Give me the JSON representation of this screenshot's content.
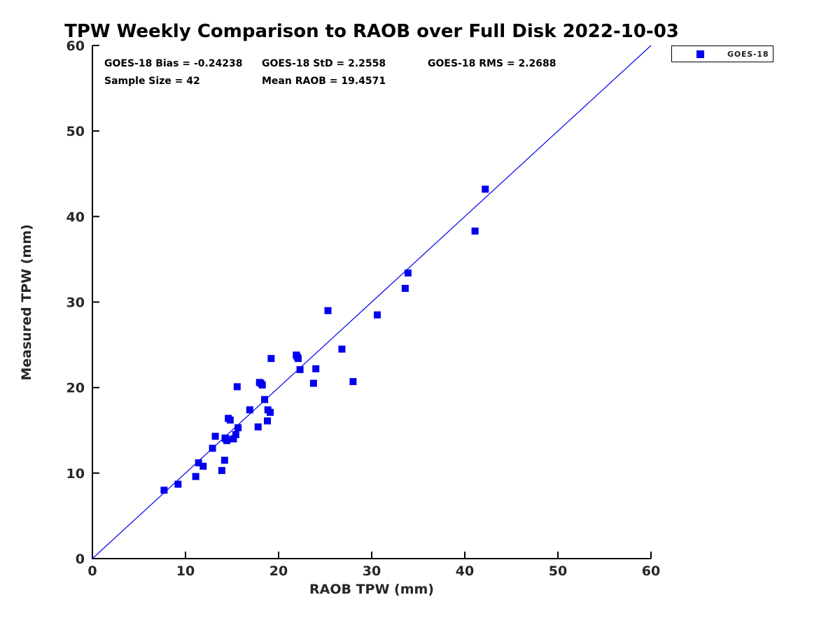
{
  "figure": {
    "background": "#ffffff",
    "accent_color": "#0000ee",
    "axis_color": "#000000",
    "tick_text_color": "#262626"
  },
  "chart_data": {
    "type": "scatter",
    "title": "TPW Weekly Comparison to RAOB over Full Disk 2022-10-03",
    "xlabel": "RAOB TPW (mm)",
    "ylabel": "Measured TPW (mm)",
    "xlim": [
      0,
      60
    ],
    "ylim": [
      0,
      60
    ],
    "xticks": [
      0,
      10,
      20,
      30,
      40,
      50,
      60
    ],
    "yticks": [
      0,
      10,
      20,
      30,
      40,
      50,
      60
    ],
    "grid": false,
    "stats": {
      "bias": "GOES-18 Bias = -0.24238",
      "std": "GOES-18 StD = 2.2558",
      "rms": "GOES-18 RMS = 2.2688",
      "sample_size": "Sample Size = 42",
      "mean_raob": "Mean RAOB = 19.4571"
    },
    "legend": {
      "position": "outside-top-right",
      "entries": [
        {
          "label": "GOES-18",
          "marker": "square",
          "color": "#0000ee"
        }
      ]
    },
    "reference_line": {
      "type": "identity",
      "x": [
        0,
        60
      ],
      "y": [
        0,
        60
      ],
      "color": "#0000ee"
    },
    "series": [
      {
        "name": "GOES-18",
        "marker": "square",
        "color": "#0000ee",
        "points": [
          [
            7.7,
            8.0
          ],
          [
            9.2,
            8.7
          ],
          [
            11.1,
            9.6
          ],
          [
            11.4,
            11.2
          ],
          [
            11.9,
            10.8
          ],
          [
            12.9,
            12.9
          ],
          [
            13.2,
            14.3
          ],
          [
            13.9,
            10.3
          ],
          [
            14.2,
            11.5
          ],
          [
            14.25,
            14.1
          ],
          [
            14.35,
            14.0
          ],
          [
            14.45,
            13.8
          ],
          [
            15.15,
            14.0
          ],
          [
            15.4,
            14.5
          ],
          [
            15.65,
            15.3
          ],
          [
            14.6,
            16.4
          ],
          [
            14.8,
            16.2
          ],
          [
            15.55,
            20.1
          ],
          [
            16.9,
            17.4
          ],
          [
            17.8,
            15.4
          ],
          [
            18.5,
            18.6
          ],
          [
            18.8,
            16.1
          ],
          [
            18.85,
            17.4
          ],
          [
            19.1,
            17.1
          ],
          [
            17.95,
            20.6
          ],
          [
            18.1,
            20.5
          ],
          [
            18.25,
            20.3
          ],
          [
            19.2,
            23.4
          ],
          [
            21.9,
            23.8
          ],
          [
            22.0,
            23.6
          ],
          [
            22.1,
            23.4
          ],
          [
            22.3,
            22.1
          ],
          [
            23.75,
            20.5
          ],
          [
            24.0,
            22.2
          ],
          [
            25.3,
            29.0
          ],
          [
            26.8,
            24.5
          ],
          [
            28.0,
            20.7
          ],
          [
            30.6,
            28.5
          ],
          [
            33.6,
            31.6
          ],
          [
            33.9,
            33.4
          ],
          [
            41.1,
            38.3
          ],
          [
            42.2,
            43.2
          ]
        ]
      }
    ]
  }
}
